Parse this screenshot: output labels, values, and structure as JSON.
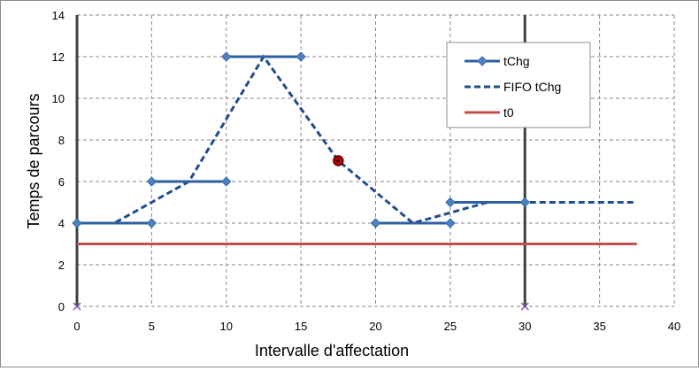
{
  "chart_data": {
    "type": "line",
    "xlabel": "Intervalle d'affectation",
    "ylabel": "Temps de parcours",
    "xlim": [
      0,
      40
    ],
    "ylim": [
      0,
      14
    ],
    "x_ticks": [
      "0",
      "5",
      "10",
      "15",
      "20",
      "25",
      "30",
      "35",
      "40"
    ],
    "y_ticks": [
      "0",
      "2",
      "4",
      "6",
      "8",
      "10",
      "12",
      "14"
    ],
    "grid": true,
    "legend_position": "top-right",
    "series": [
      {
        "name": "tChg",
        "style": "solid-with-diamond-markers",
        "color": "#2e5fa3",
        "segments": [
          [
            [
              0,
              4
            ],
            [
              5,
              4
            ]
          ],
          [
            [
              5,
              6
            ],
            [
              10,
              6
            ]
          ],
          [
            [
              10,
              12
            ],
            [
              15,
              12
            ]
          ],
          [
            [
              20,
              4
            ],
            [
              25,
              4
            ]
          ],
          [
            [
              25,
              5
            ],
            [
              30,
              5
            ]
          ]
        ]
      },
      {
        "name": "FIFO tChg",
        "style": "dashed",
        "color": "#1f4e8c",
        "points": [
          [
            0,
            4
          ],
          [
            2.5,
            4
          ],
          [
            7.5,
            6
          ],
          [
            12.5,
            12
          ],
          [
            17.5,
            7
          ],
          [
            22.5,
            4
          ],
          [
            27.5,
            5
          ],
          [
            37.5,
            5
          ]
        ]
      },
      {
        "name": "t0",
        "style": "solid",
        "color": "#c0504d",
        "points": [
          [
            0,
            3
          ],
          [
            37.5,
            3
          ]
        ]
      }
    ],
    "vertical_lines": [
      0,
      30
    ],
    "annotations": {
      "highlight_point": [
        17.5,
        7
      ],
      "axis_cross_markers": [
        [
          0,
          0
        ],
        [
          30,
          0
        ]
      ]
    }
  }
}
